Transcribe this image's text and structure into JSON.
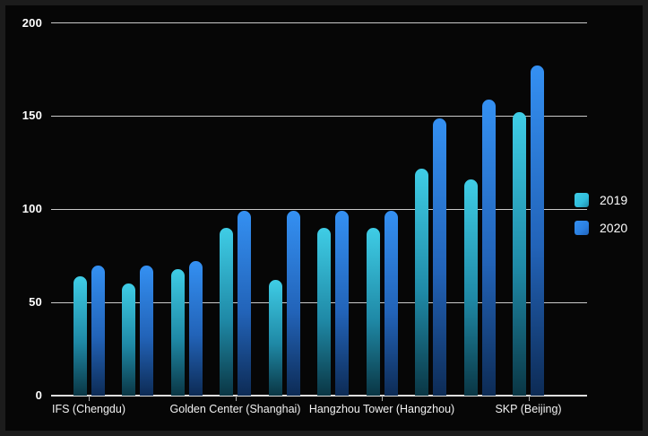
{
  "chart_data": {
    "type": "bar",
    "title": "",
    "groups": 10,
    "ylim": [
      0,
      200
    ],
    "y_ticks": [
      0,
      50,
      100,
      150,
      200
    ],
    "grid": true,
    "legend_position": "right",
    "x_axis_labels": [
      {
        "label": "IFS (Chengdu)",
        "group": 0
      },
      {
        "label": "Golden Center (Shanghai)",
        "group": 3
      },
      {
        "label": "Hangzhou Tower (Hangzhou)",
        "group": 6
      },
      {
        "label": "SKP (Beijing)",
        "group": 9
      }
    ],
    "series": [
      {
        "name": "2019",
        "color": "#30bcdc",
        "gradient": [
          "#3fcde6",
          "#1f89a6",
          "#0a3644"
        ],
        "values": [
          64,
          60,
          68,
          90,
          62,
          90,
          90,
          122,
          116,
          152
        ]
      },
      {
        "name": "2020",
        "color": "#2b7fe0",
        "gradient": [
          "#3490f2",
          "#2263b8",
          "#0d2b55"
        ],
        "values": [
          70,
          70,
          72,
          99,
          99,
          99,
          99,
          149,
          159,
          177
        ]
      }
    ]
  },
  "colors": {
    "background": "#060606",
    "frame_border": "#1c1c1c",
    "gridline": "#c9c9c9",
    "text": "#ffffff"
  }
}
